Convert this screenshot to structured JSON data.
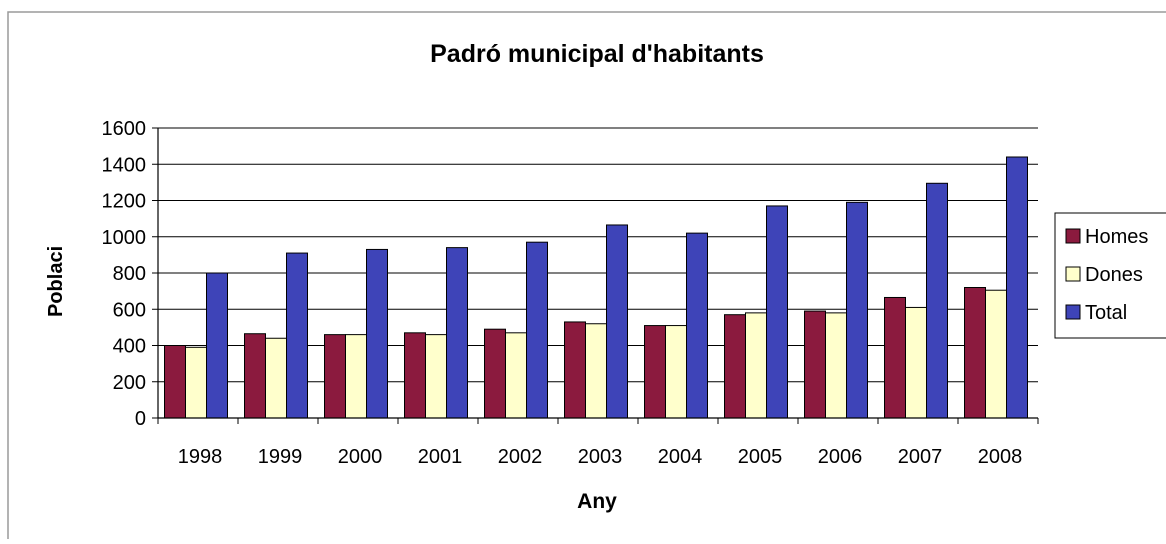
{
  "chart_data": {
    "type": "bar",
    "title": "Padró municipal d'habitants",
    "xlabel": "Any",
    "ylabel": "Poblaci",
    "categories": [
      "1998",
      "1999",
      "2000",
      "2001",
      "2002",
      "2003",
      "2004",
      "2005",
      "2006",
      "2007",
      "2008"
    ],
    "series": [
      {
        "name": "Homes",
        "color": "#8b1a3e",
        "values": [
          400,
          465,
          460,
          470,
          490,
          530,
          510,
          570,
          590,
          665,
          720
        ]
      },
      {
        "name": "Dones",
        "color": "#ffffcc",
        "values": [
          390,
          440,
          460,
          460,
          470,
          520,
          510,
          580,
          580,
          610,
          705
        ]
      },
      {
        "name": "Total",
        "color": "#3e44b8",
        "values": [
          800,
          910,
          930,
          940,
          970,
          1065,
          1020,
          1170,
          1190,
          1295,
          1440
        ]
      }
    ],
    "ylim": [
      0,
      1600
    ],
    "yticks": [
      0,
      200,
      400,
      600,
      800,
      1000,
      1200,
      1400,
      1600
    ],
    "grid": true,
    "legend_position": "right"
  }
}
